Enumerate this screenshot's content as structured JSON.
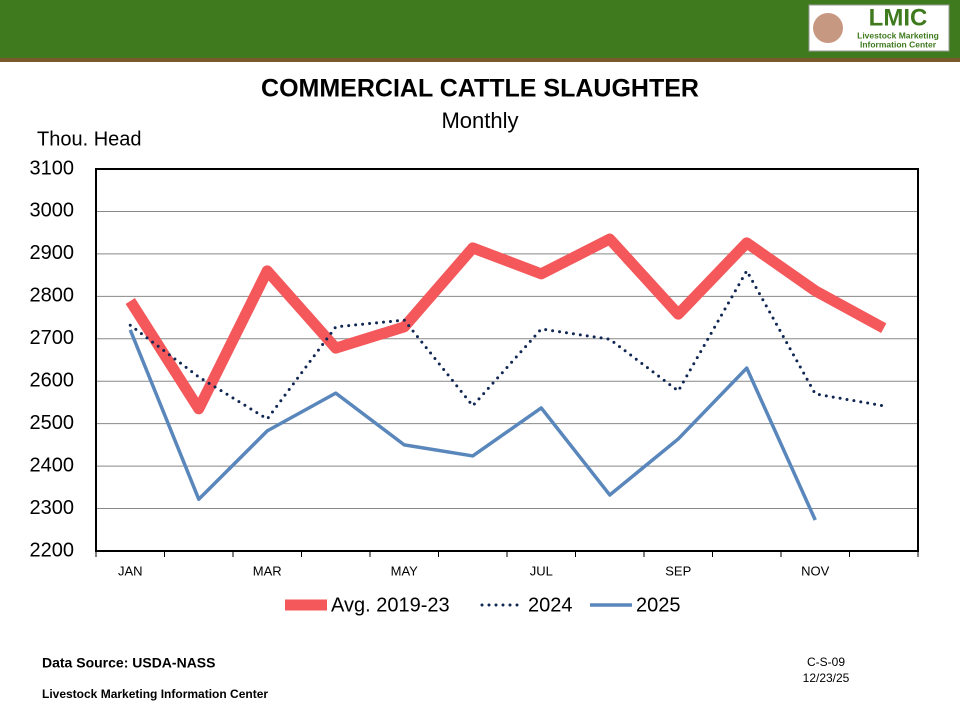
{
  "header": {
    "logo_title": "LMIC",
    "logo_subtitle_1": "Livestock Marketing",
    "logo_subtitle_2": "Information Center"
  },
  "chart_data": {
    "type": "line",
    "title": "COMMERCIAL CATTLE SLAUGHTER",
    "subtitle": "Monthly",
    "y_label": "Thou. Head",
    "categories": [
      "JAN",
      null,
      "MAR",
      null,
      "MAY",
      null,
      "JUL",
      null,
      "SEP",
      null,
      "NOV",
      null
    ],
    "series": [
      {
        "name": "Avg. 2019-23",
        "color": "#f4585b",
        "style": "solid",
        "width": 11,
        "values": [
          2789,
          2535,
          2860,
          2678,
          2728,
          2914,
          2853,
          2935,
          2758,
          2926,
          2813,
          2725
        ]
      },
      {
        "name": "2024",
        "color": "#0f2552",
        "style": "dotted",
        "width": 3,
        "values": [
          2732,
          2610,
          2511,
          2728,
          2744,
          2542,
          2723,
          2699,
          2577,
          2860,
          2570,
          2542
        ]
      },
      {
        "name": "2025",
        "color": "#5a87bb",
        "style": "solid",
        "width": 3.5,
        "values": [
          2721,
          2322,
          2483,
          2572,
          2450,
          2424,
          2537,
          2332,
          2464,
          2631,
          2273,
          null
        ]
      }
    ],
    "ylim": [
      2200,
      3100
    ],
    "yticks": [
      2200,
      2300,
      2400,
      2500,
      2600,
      2700,
      2800,
      2900,
      3000,
      3100
    ],
    "grid": true,
    "legend": "bottom"
  },
  "footer": {
    "source": "Data Source:  USDA-NASS",
    "org": "Livestock Marketing Information Center",
    "code": "C-S-09",
    "date": "12/23/25"
  }
}
